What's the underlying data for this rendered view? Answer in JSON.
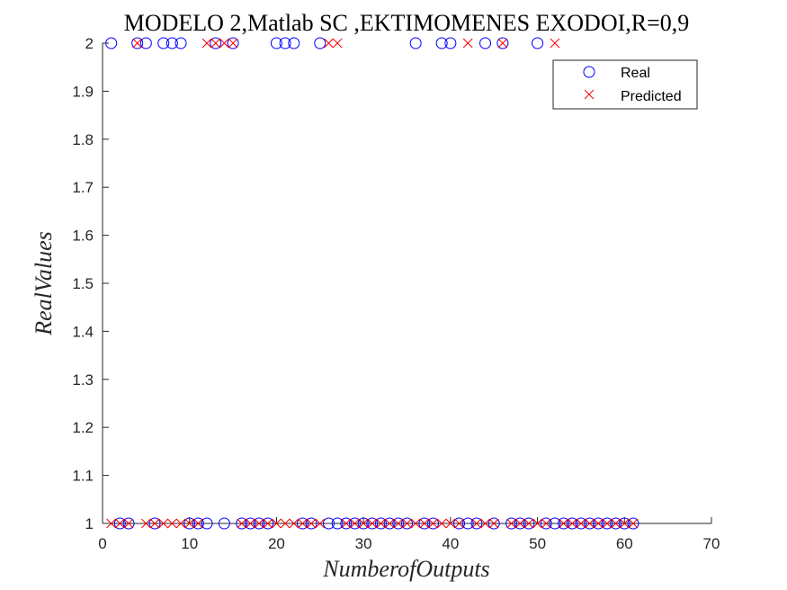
{
  "chart_data": {
    "type": "scatter",
    "title": "MODELO 2,Matlab SC ,EKTIMOMENES EXODOI,R=0,9",
    "xlabel": "NumberofOutputs",
    "ylabel": "RealValues",
    "xlim": [
      0,
      70
    ],
    "ylim": [
      1,
      2
    ],
    "xticks": [
      "0",
      "10",
      "20",
      "30",
      "40",
      "50",
      "60",
      "70"
    ],
    "yticks": [
      "1",
      "1.1",
      "1.2",
      "1.3",
      "1.4",
      "1.5",
      "1.6",
      "1.7",
      "1.8",
      "1.9",
      "2"
    ],
    "legend_position": "top-right",
    "series": [
      {
        "name": "Real",
        "marker": "circle",
        "color": "#0000ff",
        "x": [
          1,
          2,
          3,
          4,
          5,
          6,
          7,
          8,
          9,
          10,
          11,
          12,
          13,
          14,
          15,
          16,
          17,
          18,
          19,
          20,
          21,
          22,
          23,
          24,
          25,
          26,
          27,
          28,
          29,
          30,
          31,
          32,
          33,
          34,
          35,
          36,
          37,
          38,
          39,
          40,
          41,
          42,
          43,
          44,
          45,
          46,
          47,
          48,
          49,
          50,
          51,
          52,
          53,
          54,
          55,
          56,
          57,
          58,
          59,
          60,
          61
        ],
        "y": [
          2,
          1,
          1,
          2,
          2,
          1,
          2,
          2,
          2,
          1,
          1,
          1,
          2,
          1,
          2,
          1,
          1,
          1,
          1,
          2,
          2,
          2,
          1,
          1,
          2,
          1,
          1,
          1,
          1,
          1,
          1,
          1,
          1,
          1,
          1,
          2,
          1,
          1,
          2,
          2,
          1,
          1,
          1,
          2,
          1,
          2,
          1,
          1,
          1,
          2,
          1,
          1,
          1,
          1,
          1,
          1,
          1,
          1,
          1,
          1,
          1
        ]
      },
      {
        "name": "Predicted",
        "marker": "x",
        "color": "#ff0000",
        "x": [
          1,
          2,
          3,
          4,
          5,
          6,
          7,
          8,
          9,
          10,
          11,
          12,
          13,
          14,
          15,
          16,
          17,
          18,
          19,
          20,
          21,
          22,
          23,
          24,
          25,
          26,
          27,
          28,
          29,
          30,
          31,
          32,
          33,
          34,
          35,
          36,
          37,
          38,
          39,
          40,
          41,
          42,
          43,
          44,
          45,
          46,
          47,
          48,
          49,
          50,
          51,
          52,
          53,
          54,
          55,
          56,
          57,
          58,
          59,
          60,
          61
        ],
        "y": [
          1,
          1,
          1,
          2,
          1,
          1,
          1,
          1,
          1,
          1,
          1,
          2,
          2,
          2,
          2,
          1,
          1,
          1,
          1,
          1,
          1,
          1,
          1,
          1,
          1,
          2,
          2,
          1,
          1,
          1,
          1,
          1,
          1,
          1,
          1,
          1,
          1,
          1,
          1,
          1,
          1,
          2,
          1,
          1,
          1,
          2,
          1,
          1,
          1,
          1,
          1,
          2,
          1,
          1,
          1,
          1,
          1,
          1,
          1,
          1,
          1
        ]
      }
    ]
  }
}
